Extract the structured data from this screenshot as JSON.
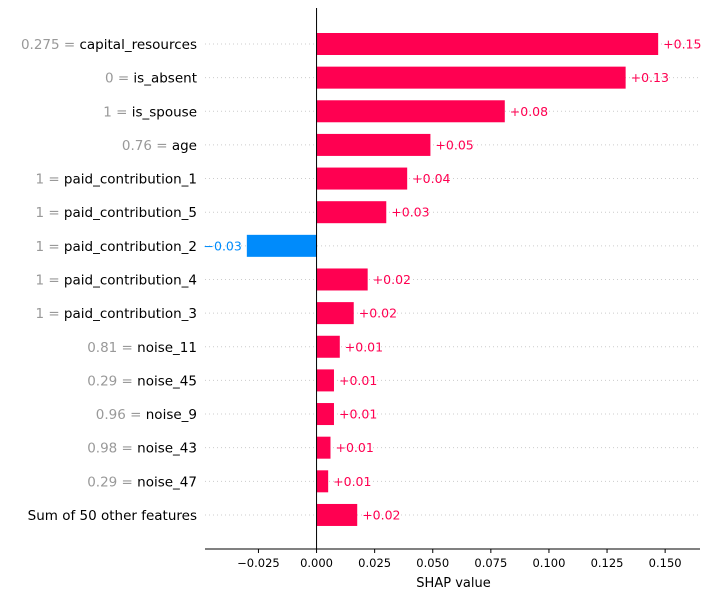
{
  "chart_data": {
    "type": "bar",
    "orientation": "horizontal",
    "xlabel": "SHAP value",
    "xlim": [
      -0.048,
      0.165
    ],
    "xticks": [
      "−0.025",
      "0.000",
      "0.025",
      "0.050",
      "0.075",
      "0.100",
      "0.125",
      "0.150"
    ],
    "xtick_values": [
      -0.025,
      0,
      0.025,
      0.05,
      0.075,
      0.1,
      0.125,
      0.15
    ],
    "colors": {
      "positive": "#ff0051",
      "negative": "#008bfb",
      "feature_value": "#999999"
    },
    "features": [
      {
        "value": "0.275",
        "name": "capital_resources",
        "shap": 0.147,
        "label": "+0.15"
      },
      {
        "value": "0",
        "name": "is_absent",
        "shap": 0.133,
        "label": "+0.13"
      },
      {
        "value": "1",
        "name": "is_spouse",
        "shap": 0.081,
        "label": "+0.08"
      },
      {
        "value": "0.76",
        "name": "age",
        "shap": 0.049,
        "label": "+0.05"
      },
      {
        "value": "1",
        "name": "paid_contribution_1",
        "shap": 0.039,
        "label": "+0.04"
      },
      {
        "value": "1",
        "name": "paid_contribution_5",
        "shap": 0.03,
        "label": "+0.03"
      },
      {
        "value": "1",
        "name": "paid_contribution_2",
        "shap": -0.03,
        "label": "−0.03"
      },
      {
        "value": "1",
        "name": "paid_contribution_4",
        "shap": 0.022,
        "label": "+0.02"
      },
      {
        "value": "1",
        "name": "paid_contribution_3",
        "shap": 0.016,
        "label": "+0.02"
      },
      {
        "value": "0.81",
        "name": "noise_11",
        "shap": 0.01,
        "label": "+0.01"
      },
      {
        "value": "0.29",
        "name": "noise_45",
        "shap": 0.0075,
        "label": "+0.01"
      },
      {
        "value": "0.96",
        "name": "noise_9",
        "shap": 0.0075,
        "label": "+0.01"
      },
      {
        "value": "0.98",
        "name": "noise_43",
        "shap": 0.006,
        "label": "+0.01"
      },
      {
        "value": "0.29",
        "name": "noise_47",
        "shap": 0.005,
        "label": "+0.01"
      },
      {
        "value": "",
        "name": "Sum of 50 other features",
        "shap": 0.0175,
        "label": "+0.02"
      }
    ]
  }
}
